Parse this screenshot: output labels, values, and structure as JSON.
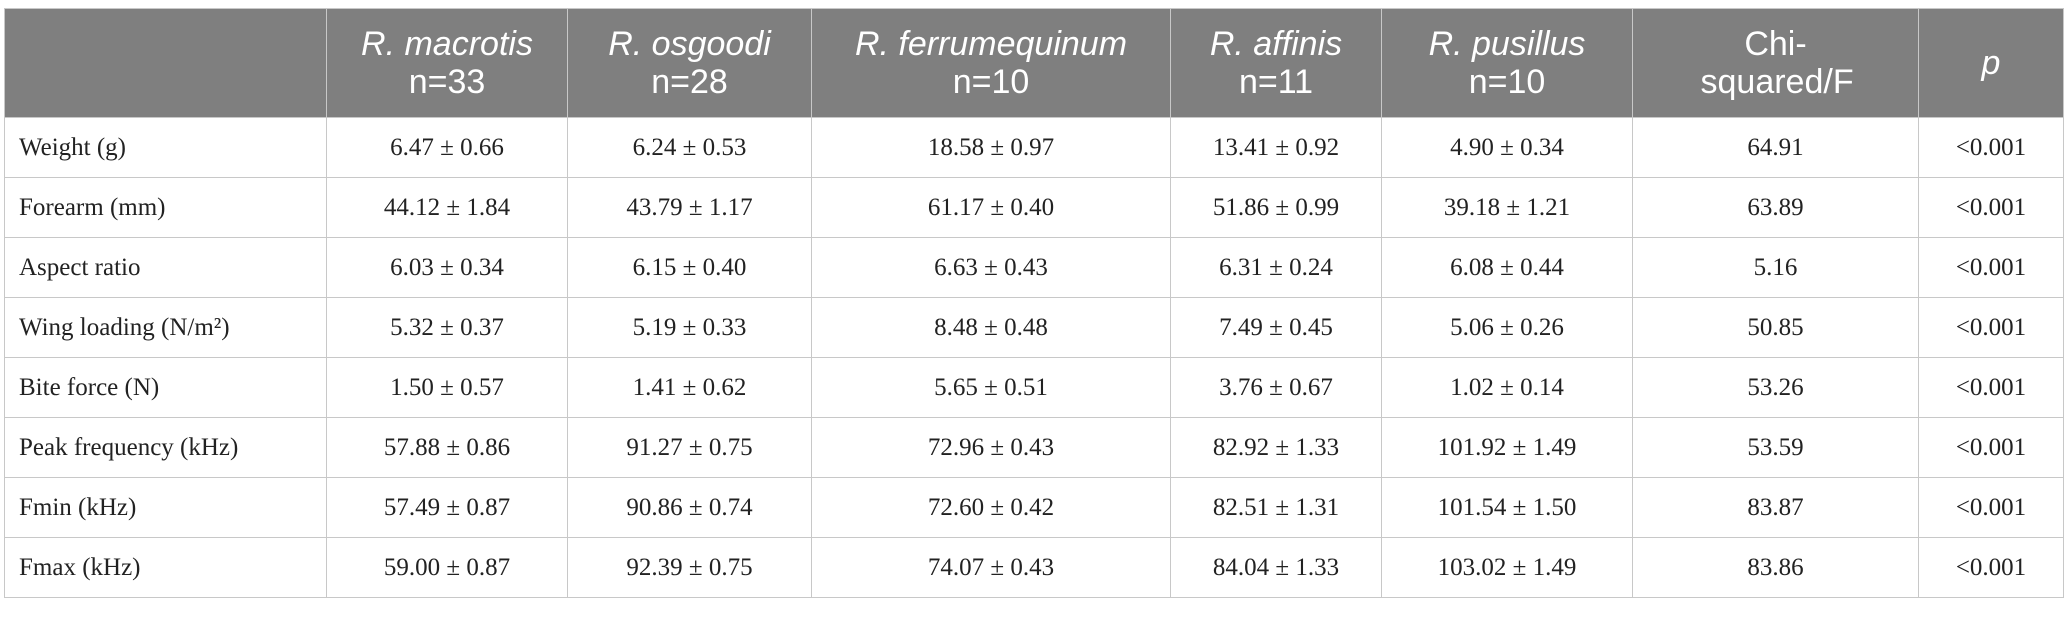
{
  "table": {
    "header": [
      [
        "R. macrotis",
        "n=33"
      ],
      [
        "R. osgoodi",
        "n=28"
      ],
      [
        "R. ferrumequinum",
        "n=10"
      ],
      [
        "R. affinis",
        "n=11"
      ],
      [
        "R. pusillus",
        "n=10"
      ],
      [
        "Chi-squared/F"
      ],
      [
        "p"
      ]
    ],
    "rows": [
      [
        "Weight (g)",
        "6.47 ± 0.66",
        "6.24 ± 0.53",
        "18.58 ± 0.97",
        "13.41 ± 0.92",
        "4.90 ± 0.34",
        "64.91",
        "<0.001"
      ],
      [
        "Forearm (mm)",
        "44.12 ± 1.84",
        "43.79 ± 1.17",
        "61.17 ± 0.40",
        "51.86 ± 0.99",
        "39.18 ± 1.21",
        "63.89",
        "<0.001"
      ],
      [
        "Aspect ratio",
        "6.03 ± 0.34",
        "6.15 ± 0.40",
        "6.63 ± 0.43",
        "6.31 ± 0.24",
        "6.08 ± 0.44",
        "5.16",
        "<0.001"
      ],
      [
        "Wing loading (N/m²)",
        "5.32 ± 0.37",
        "5.19 ± 0.33",
        "8.48 ± 0.48",
        "7.49 ± 0.45",
        "5.06 ± 0.26",
        "50.85",
        "<0.001"
      ],
      [
        "Bite force (N)",
        "1.50 ± 0.57",
        "1.41 ± 0.62",
        "5.65 ± 0.51",
        "3.76 ± 0.67",
        "1.02 ± 0.14",
        "53.26",
        "<0.001"
      ],
      [
        "Peak frequency (kHz)",
        "57.88 ± 0.86",
        "91.27 ± 0.75",
        "72.96 ± 0.43",
        "82.92 ± 1.33",
        "101.92 ± 1.49",
        "53.59",
        "<0.001"
      ],
      [
        "Fmin (kHz)",
        "57.49 ± 0.87",
        "90.86 ± 0.74",
        "72.60 ± 0.42",
        "82.51 ± 1.31",
        "101.54 ± 1.50",
        "83.87",
        "<0.001"
      ],
      [
        "Fmax (kHz)",
        "59.00 ± 0.87",
        "92.39 ± 0.75",
        "74.07 ± 0.43",
        "84.04 ± 1.33",
        "103.02 ± 1.49",
        "83.86",
        "<0.001"
      ]
    ]
  }
}
